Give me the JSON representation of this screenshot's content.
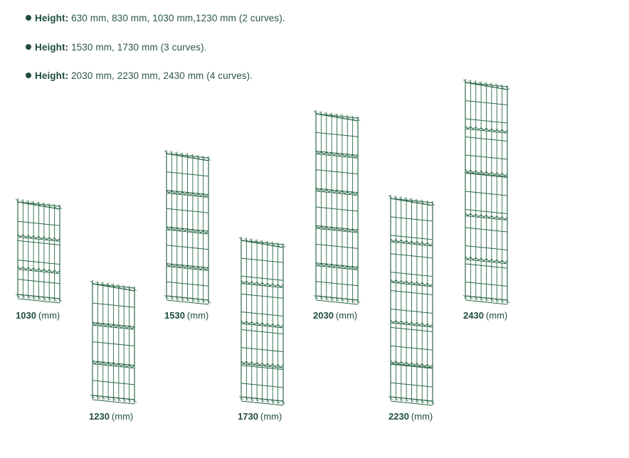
{
  "specs": [
    {
      "key": "Height:",
      "value": "630 mm, 830 mm, 1030 mm,1230 mm (2 curves)."
    },
    {
      "key": "Height:",
      "value": " 1530 mm, 1730 mm (3 curves)."
    },
    {
      "key": "Height:",
      "value": "2030 mm, 2230 mm, 2430 mm (4 curves)."
    }
  ],
  "panels": [
    {
      "height": "1030",
      "unit": "(mm)",
      "curves": 2
    },
    {
      "height": "1230",
      "unit": "(mm)",
      "curves": 2
    },
    {
      "height": "1530",
      "unit": "(mm)",
      "curves": 3
    },
    {
      "height": "1730",
      "unit": "(mm)",
      "curves": 3
    },
    {
      "height": "2030",
      "unit": "(mm)",
      "curves": 4
    },
    {
      "height": "2230",
      "unit": "(mm)",
      "curves": 4
    },
    {
      "height": "2430",
      "unit": "(mm)",
      "curves": 4
    }
  ],
  "colors": {
    "text": "#1f4e3a",
    "mesh": "#2e6a4a"
  }
}
